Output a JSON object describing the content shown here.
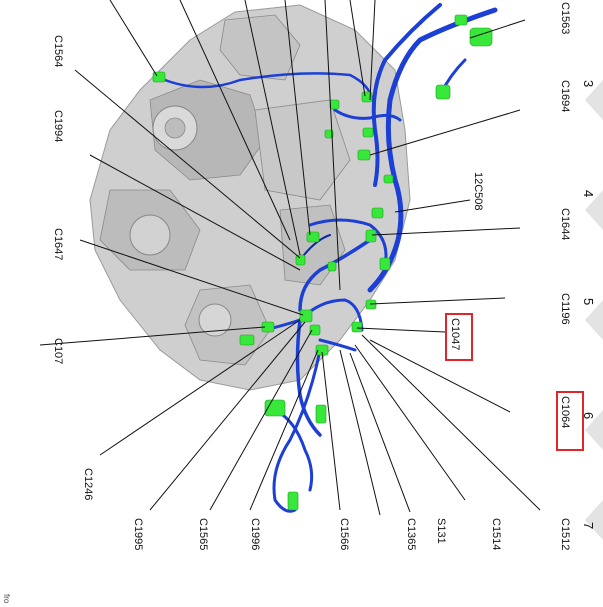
{
  "connector_labels": {
    "c1563": "C1563",
    "c1694": "C1694",
    "c1564": "C1564",
    "c1994": "C1994",
    "c12c508": "12C508",
    "c1644": "C1644",
    "c1647": "C1647",
    "c1196": "C1196",
    "c1047": "C1047",
    "c107": "C107",
    "c1064": "C1064",
    "c1246": "C1246",
    "c1995": "C1995",
    "c1565": "C1565",
    "c1996": "C1996",
    "c1566": "C1566",
    "c1365": "C1365",
    "s131": "S131",
    "c1514": "C1514",
    "c1512": "C1512"
  },
  "grid_numbers": [
    "3",
    "4",
    "5",
    "6",
    "7"
  ],
  "footer_fragment": "fro",
  "highlighted_labels": [
    "C1047",
    "C1064"
  ],
  "colors": {
    "harness": "#1c3fd6",
    "connector": "#37e83a",
    "highlight": "#e0262a",
    "engine": "#c9c9c9"
  }
}
